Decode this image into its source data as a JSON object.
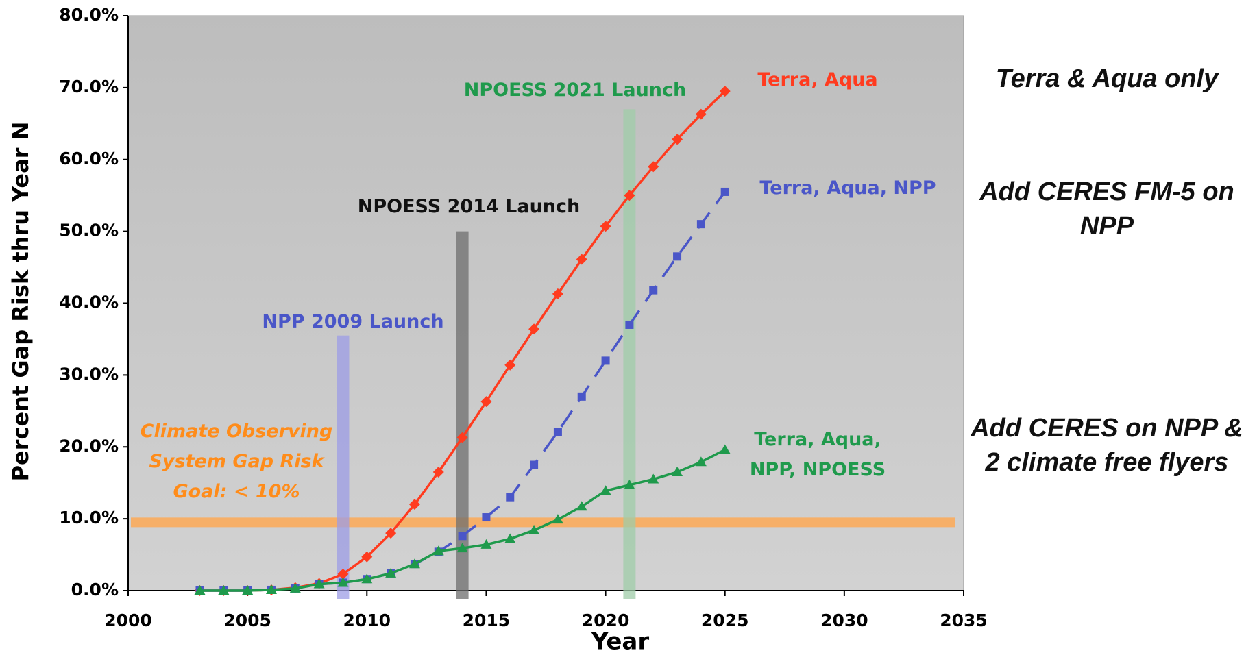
{
  "chart_data": {
    "type": "line",
    "x_label": "Year",
    "y_label": "Percent Gap Risk thru Year N",
    "xlim": [
      2000,
      2035
    ],
    "xticks": [
      2000,
      2005,
      2010,
      2015,
      2020,
      2025,
      2030,
      2035
    ],
    "ylim": [
      0,
      80
    ],
    "yticks": [
      {
        "value": 0,
        "label": "0.0%"
      },
      {
        "value": 10,
        "label": "10.0%"
      },
      {
        "value": 20,
        "label": "20.0%"
      },
      {
        "value": 30,
        "label": "30.0%"
      },
      {
        "value": 40,
        "label": "40.0%"
      },
      {
        "value": 50,
        "label": "50.0%"
      },
      {
        "value": 60,
        "label": "60.0%"
      },
      {
        "value": 70,
        "label": "70.0%"
      },
      {
        "value": 80,
        "label": "80.0%"
      }
    ],
    "x": [
      2003,
      2004,
      2005,
      2006,
      2007,
      2008,
      2009,
      2010,
      2011,
      2012,
      2013,
      2014,
      2015,
      2016,
      2017,
      2018,
      2019,
      2020,
      2021,
      2022,
      2023,
      2024,
      2025
    ],
    "series": [
      {
        "name": "Terra, Aqua",
        "color": "#ff3b1f",
        "marker": "diamond",
        "dashed": false,
        "values": [
          0,
          0,
          0,
          0.1,
          0.4,
          1.0,
          2.3,
          4.7,
          8.0,
          12.0,
          16.5,
          21.3,
          26.3,
          31.4,
          36.4,
          41.3,
          46.1,
          50.7,
          55.0,
          59.0,
          62.8,
          66.3,
          69.5
        ]
      },
      {
        "name": "Terra, Aqua, NPP",
        "color": "#4a56c8",
        "marker": "square",
        "dashed": true,
        "values": [
          0,
          0,
          0,
          0.1,
          0.3,
          0.9,
          1.1,
          1.6,
          2.4,
          3.7,
          5.4,
          7.6,
          10.2,
          13.0,
          17.5,
          22.1,
          27.0,
          32.0,
          37.0,
          41.8,
          46.5,
          51.0,
          55.5
        ]
      },
      {
        "name": "Terra, Aqua, NPP, NPOESS",
        "color": "#1f9a4c",
        "marker": "triangle",
        "dashed": false,
        "values": [
          0,
          0,
          0,
          0.1,
          0.3,
          0.9,
          1.1,
          1.6,
          2.4,
          3.7,
          5.5,
          5.9,
          6.4,
          7.2,
          8.4,
          9.9,
          11.7,
          13.9,
          14.7,
          15.5,
          16.5,
          17.9,
          19.6
        ]
      }
    ],
    "launches": [
      {
        "label": "NPP 2009 Launch",
        "x": 2009,
        "top": 35.5,
        "color": "#9c9ce6"
      },
      {
        "label": "NPOESS 2014 Launch",
        "x": 2014,
        "top": 50,
        "color": "#6e6e6e"
      },
      {
        "label": "NPOESS 2021 Launch",
        "x": 2021,
        "top": 67,
        "color": "#9fcca8"
      }
    ],
    "goal": {
      "label": "Climate Observing System Gap Risk Goal: < 10%",
      "value": 9.5,
      "color": "#ffa64d"
    }
  },
  "notes": [
    "Terra & Aqua only",
    "Add CERES FM-5 on NPP",
    "Add CERES on NPP & 2 climate free flyers"
  ]
}
